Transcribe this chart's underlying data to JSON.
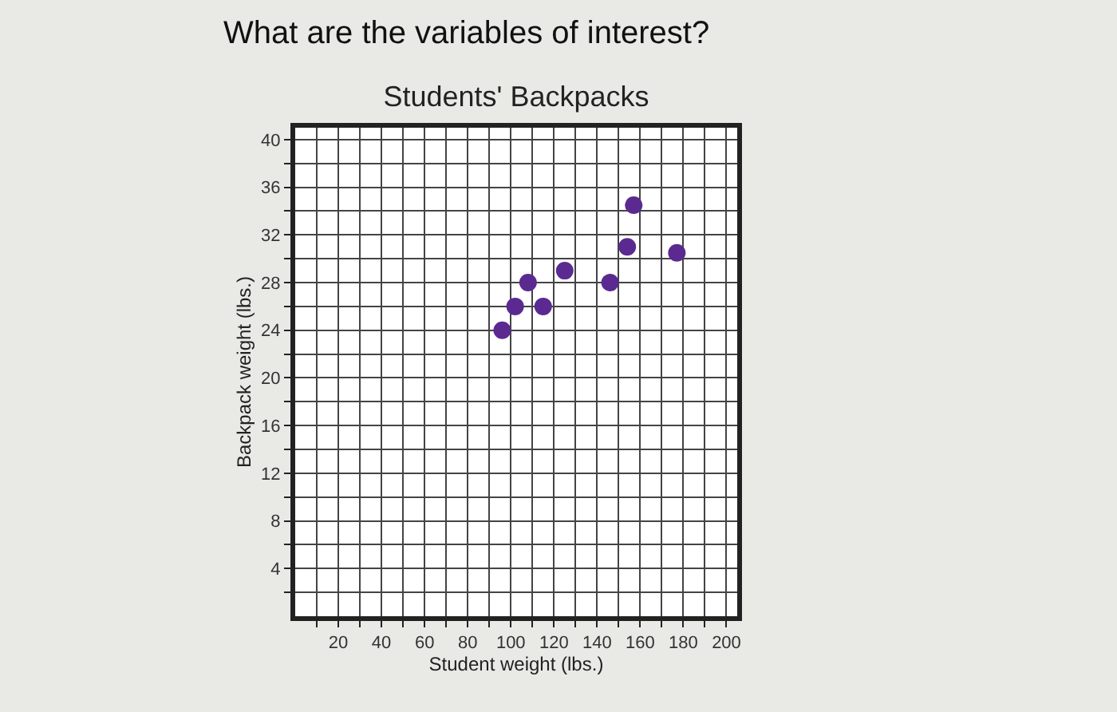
{
  "chart_data": {
    "type": "scatter",
    "title": "Students' Backpacks",
    "xlabel": "Student weight (lbs.)",
    "ylabel": "Backpack weight (lbs.)",
    "annotations": [
      "What are the variables of interest?"
    ],
    "x": [
      96,
      102,
      108,
      115,
      125,
      146,
      154,
      157,
      177
    ],
    "series": [
      {
        "color": "#5a2a91",
        "values": [
          24,
          26,
          28,
          26,
          29,
          28,
          31,
          34.5,
          30.5
        ]
      }
    ],
    "xlim": [
      0,
      205
    ],
    "ylim": [
      0,
      41
    ],
    "xticks": [
      {
        "value": 10,
        "label": null
      },
      20,
      {
        "value": 30,
        "label": null
      },
      40,
      {
        "value": 50,
        "label": null
      },
      60,
      {
        "value": 70,
        "label": null
      },
      80,
      {
        "value": 90,
        "label": null
      },
      100,
      {
        "value": 110,
        "label": null
      },
      120,
      {
        "value": 130,
        "label": null
      },
      140,
      {
        "value": 150,
        "label": null
      },
      160,
      {
        "value": 170,
        "label": null
      },
      180,
      {
        "value": 190,
        "label": null
      },
      200
    ],
    "yticks": [
      {
        "value": 2,
        "label": null
      },
      4,
      {
        "value": 6,
        "label": null
      },
      8,
      {
        "value": 10,
        "label": null
      },
      12,
      {
        "value": 14,
        "label": null
      },
      16,
      {
        "value": 18,
        "label": null
      },
      20,
      {
        "value": 22,
        "label": null
      },
      24,
      {
        "value": 26,
        "label": null
      },
      28,
      {
        "value": 30,
        "label": null
      },
      32,
      {
        "value": 34,
        "label": null
      },
      36,
      {
        "value": 38,
        "label": null
      },
      40
    ],
    "grid": true,
    "marker": "circle"
  }
}
